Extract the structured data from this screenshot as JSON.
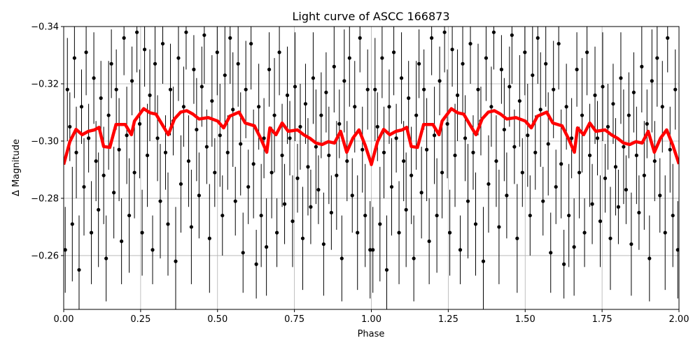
{
  "chart_data": {
    "type": "scatter",
    "title": "Light curve of ASCC 166873",
    "xlabel": "Phase",
    "ylabel": "Δ Magnitude",
    "xlim": [
      0,
      2
    ],
    "ylim": [
      -0.2412,
      -0.34
    ],
    "y_inverted": true,
    "grid": true,
    "xticks": [
      0,
      0.25,
      0.5,
      0.75,
      1.0,
      1.25,
      1.5,
      1.75,
      2.0
    ],
    "xtick_labels": [
      "0.00",
      "0.25",
      "0.50",
      "0.75",
      "1.00",
      "1.25",
      "1.50",
      "1.75",
      "2.00"
    ],
    "yticks": [
      -0.34,
      -0.32,
      -0.3,
      -0.28,
      -0.26
    ],
    "ytick_labels": [
      "−0.34",
      "−0.32",
      "−0.30",
      "−0.28",
      "−0.26"
    ],
    "colors": {
      "points": "#000000",
      "binned": "#ff0000",
      "grid": "#b0b0b0"
    },
    "phase_repeated": true,
    "series": [
      {
        "kind": "points_with_errorbars",
        "phase": [
          0.005,
          0.012,
          0.02,
          0.028,
          0.035,
          0.041,
          0.05,
          0.058,
          0.066,
          0.073,
          0.081,
          0.09,
          0.098,
          0.105,
          0.113,
          0.121,
          0.13,
          0.138,
          0.146,
          0.155,
          0.163,
          0.171,
          0.18,
          0.188,
          0.196,
          0.205,
          0.213,
          0.222,
          0.23,
          0.238,
          0.247,
          0.255,
          0.263,
          0.272,
          0.28,
          0.289,
          0.297,
          0.305,
          0.314,
          0.322,
          0.331,
          0.339,
          0.347,
          0.356,
          0.364,
          0.373,
          0.381,
          0.39,
          0.398,
          0.406,
          0.415,
          0.423,
          0.432,
          0.44,
          0.449,
          0.457,
          0.465,
          0.474,
          0.482,
          0.491,
          0.499,
          0.508,
          0.516,
          0.524,
          0.533,
          0.541,
          0.55,
          0.558,
          0.567,
          0.575,
          0.583,
          0.592,
          0.6,
          0.609,
          0.617,
          0.626,
          0.634,
          0.642,
          0.651,
          0.659,
          0.668,
          0.676,
          0.685,
          0.693,
          0.701,
          0.71,
          0.718,
          0.727,
          0.735,
          0.744,
          0.752,
          0.76,
          0.769,
          0.777,
          0.786,
          0.794,
          0.803,
          0.811,
          0.82,
          0.828,
          0.837,
          0.845,
          0.853,
          0.862,
          0.87,
          0.879,
          0.887,
          0.896,
          0.904,
          0.912,
          0.921,
          0.929,
          0.938,
          0.946,
          0.955,
          0.963,
          0.971,
          0.98,
          0.988,
          0.996
        ],
        "mag": [
          -0.262,
          -0.318,
          -0.305,
          -0.271,
          -0.329,
          -0.296,
          -0.255,
          -0.312,
          -0.284,
          -0.331,
          -0.301,
          -0.268,
          -0.322,
          -0.293,
          -0.276,
          -0.315,
          -0.288,
          -0.259,
          -0.309,
          -0.327,
          -0.282,
          -0.318,
          -0.297,
          -0.265,
          -0.336,
          -0.302,
          -0.274,
          -0.321,
          -0.289,
          -0.338,
          -0.306,
          -0.268,
          -0.332,
          -0.295,
          -0.316,
          -0.262,
          -0.327,
          -0.301,
          -0.279,
          -0.334,
          -0.296,
          -0.271,
          -0.318,
          -0.307,
          -0.258,
          -0.329,
          -0.285,
          -0.312,
          -0.338,
          -0.293,
          -0.27,
          -0.325,
          -0.304,
          -0.281,
          -0.319,
          -0.337,
          -0.298,
          -0.266,
          -0.314,
          -0.289,
          -0.331,
          -0.302,
          -0.274,
          -0.323,
          -0.296,
          -0.336,
          -0.311,
          -0.279,
          -0.327,
          -0.299,
          -0.261,
          -0.318,
          -0.284,
          -0.334,
          -0.292,
          -0.257,
          -0.312,
          -0.274,
          -0.301,
          -0.263,
          -0.325,
          -0.289,
          -0.309,
          -0.268,
          -0.331,
          -0.295,
          -0.278,
          -0.316,
          -0.301,
          -0.272,
          -0.319,
          -0.287,
          -0.305,
          -0.266,
          -0.313,
          -0.291,
          -0.277,
          -0.322,
          -0.298,
          -0.283,
          -0.309,
          -0.264,
          -0.317,
          -0.295,
          -0.275,
          -0.326,
          -0.288,
          -0.306,
          -0.259,
          -0.321,
          -0.293,
          -0.329,
          -0.281,
          -0.312,
          -0.268,
          -0.336,
          -0.297,
          -0.274,
          -0.318,
          -0.262
        ],
        "err": [
          0.015,
          0.018,
          0.012,
          0.02,
          0.014,
          0.016,
          0.019,
          0.013,
          0.017,
          0.015,
          0.012,
          0.018,
          0.016,
          0.014,
          0.02,
          0.013,
          0.017,
          0.015,
          0.019,
          0.012,
          0.016,
          0.014,
          0.018,
          0.015,
          0.013,
          0.017,
          0.02,
          0.012,
          0.016,
          0.014,
          0.019,
          0.015,
          0.013,
          0.018,
          0.016,
          0.012,
          0.017,
          0.015,
          0.02,
          0.014,
          0.013,
          0.018,
          0.016,
          0.012,
          0.019,
          0.015,
          0.017,
          0.014,
          0.013,
          0.016,
          0.02,
          0.012,
          0.018,
          0.015,
          0.014,
          0.017,
          0.013,
          0.019,
          0.016,
          0.012,
          0.015,
          0.018,
          0.014,
          0.017,
          0.013,
          0.016,
          0.02,
          0.012,
          0.015,
          0.018,
          0.014,
          0.017,
          0.013,
          0.016,
          0.019,
          0.012,
          0.015,
          0.018,
          0.014,
          0.017,
          0.013,
          0.016,
          0.02,
          0.012,
          0.015,
          0.018,
          0.014,
          0.017,
          0.013,
          0.016,
          0.019,
          0.012,
          0.015,
          0.018,
          0.014,
          0.017,
          0.013,
          0.016,
          0.02,
          0.012,
          0.015,
          0.018,
          0.014,
          0.017,
          0.013,
          0.016,
          0.019,
          0.012,
          0.015,
          0.018,
          0.014,
          0.017,
          0.013,
          0.016,
          0.02,
          0.012,
          0.015,
          0.018,
          0.014,
          0.017
        ]
      },
      {
        "kind": "binned_line",
        "phase": [
          0,
          0.02,
          0.04,
          0.06,
          0.08,
          0.1,
          0.115,
          0.13,
          0.15,
          0.17,
          0.2,
          0.22,
          0.23,
          0.26,
          0.28,
          0.3,
          0.32,
          0.34,
          0.36,
          0.38,
          0.4,
          0.42,
          0.44,
          0.47,
          0.5,
          0.52,
          0.54,
          0.57,
          0.59,
          0.62,
          0.64,
          0.66,
          0.67,
          0.69,
          0.71,
          0.73,
          0.76,
          0.78,
          0.8,
          0.82,
          0.84,
          0.86,
          0.88,
          0.9,
          0.92,
          0.94,
          0.96,
          0.98,
          1.0
        ],
        "mag": [
          -0.2918,
          -0.2998,
          -0.3041,
          -0.3022,
          -0.3034,
          -0.3039,
          -0.3048,
          -0.2981,
          -0.2978,
          -0.3058,
          -0.3058,
          -0.3022,
          -0.307,
          -0.3113,
          -0.3099,
          -0.3094,
          -0.3058,
          -0.3022,
          -0.3077,
          -0.3101,
          -0.3106,
          -0.3094,
          -0.3077,
          -0.3082,
          -0.307,
          -0.3046,
          -0.3087,
          -0.3101,
          -0.3063,
          -0.3053,
          -0.301,
          -0.2961,
          -0.3046,
          -0.3022,
          -0.3063,
          -0.3034,
          -0.3039,
          -0.3022,
          -0.301,
          -0.2993,
          -0.2988,
          -0.2998,
          -0.2993,
          -0.3034,
          -0.2961,
          -0.301,
          -0.3039,
          -0.2985,
          -0.292
        ]
      }
    ]
  }
}
